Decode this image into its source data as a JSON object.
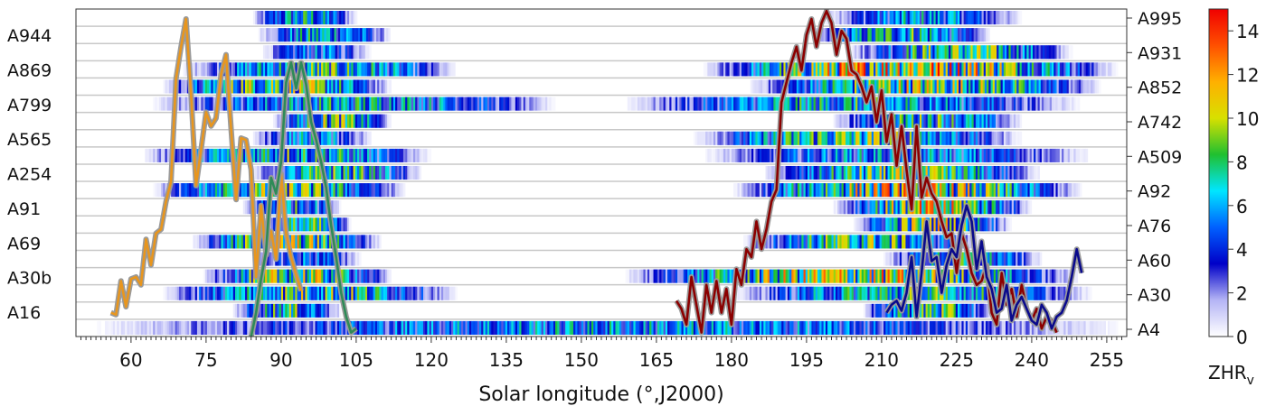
{
  "chart_data": {
    "type": "heatmap",
    "xlabel": "Solar longitude (°,J2000)",
    "xlim": [
      49,
      259
    ],
    "x_ticks": [
      60,
      75,
      90,
      105,
      120,
      135,
      150,
      165,
      180,
      195,
      210,
      225,
      240,
      255
    ],
    "left_row_labels": [
      "A944",
      "A869",
      "A799",
      "A565",
      "A254",
      "A91",
      "A69",
      "A30b",
      "A16"
    ],
    "right_row_labels": [
      "A995",
      "A931",
      "A852",
      "A742",
      "A509",
      "A92",
      "A76",
      "A60",
      "A30",
      "A4"
    ],
    "colorbar": {
      "label": "ZHR",
      "label_subscript": "v",
      "range": [
        0,
        15
      ],
      "ticks": [
        "0",
        "2",
        "4",
        "6",
        "8",
        "10",
        "12",
        "14"
      ],
      "colors": [
        "#ffffff",
        "#b4b4f5",
        "#0000c8",
        "#0060ff",
        "#00e6ff",
        "#20c030",
        "#d8e000",
        "#ffb000",
        "#ff5000",
        "#f00000"
      ]
    },
    "rows": [
      {
        "segments": [
          [
            84,
            105,
            8
          ],
          [
            198,
            238,
            7
          ]
        ]
      },
      {
        "segments": [
          [
            85,
            112,
            8
          ],
          [
            196,
            232,
            9
          ]
        ]
      },
      {
        "segments": [
          [
            86,
            108,
            6
          ],
          [
            203,
            248,
            10
          ]
        ]
      },
      {
        "segments": [
          [
            70,
            125,
            9
          ],
          [
            174,
            257,
            14
          ]
        ]
      },
      {
        "segments": [
          [
            66,
            112,
            11
          ],
          [
            183,
            254,
            11
          ]
        ]
      },
      {
        "segments": [
          [
            64,
            145,
            8
          ],
          [
            158,
            250,
            8
          ]
        ]
      },
      {
        "segments": [
          [
            88,
            112,
            10
          ],
          [
            200,
            238,
            9
          ]
        ]
      },
      {
        "segments": [
          [
            84,
            108,
            7
          ],
          [
            172,
            238,
            10
          ]
        ]
      },
      {
        "segments": [
          [
            62,
            120,
            9
          ],
          [
            174,
            252,
            7
          ]
        ]
      },
      {
        "segments": [
          [
            84,
            118,
            9
          ],
          [
            186,
            242,
            10
          ]
        ]
      },
      {
        "segments": [
          [
            64,
            115,
            10
          ],
          [
            180,
            250,
            12
          ]
        ]
      },
      {
        "segments": [
          [
            82,
            102,
            8
          ],
          [
            200,
            240,
            12
          ]
        ]
      },
      {
        "segments": [
          [
            86,
            104,
            9
          ],
          [
            204,
            236,
            11
          ]
        ]
      },
      {
        "segments": [
          [
            72,
            110,
            11
          ],
          [
            182,
            230,
            10
          ]
        ]
      },
      {
        "segments": [
          [
            84,
            106,
            6
          ],
          [
            210,
            242,
            8
          ]
        ]
      },
      {
        "segments": [
          [
            74,
            112,
            11
          ],
          [
            158,
            250,
            12
          ]
        ]
      },
      {
        "segments": [
          [
            66,
            125,
            10
          ],
          [
            180,
            252,
            9
          ]
        ]
      },
      {
        "segments": [
          [
            80,
            102,
            9
          ],
          [
            206,
            232,
            10
          ]
        ]
      },
      {
        "segments": [
          [
            52,
            258,
            7
          ]
        ]
      }
    ],
    "series": [
      {
        "color": "#e8961e",
        "x": [
          56,
          57,
          58,
          59,
          60,
          61,
          62,
          63,
          64,
          65,
          66,
          67,
          68,
          69,
          70,
          71,
          72,
          73,
          74,
          75,
          76,
          77,
          78,
          79,
          80,
          81,
          82,
          83,
          84,
          85,
          86,
          87,
          88,
          89,
          90,
          91,
          92,
          93,
          94
        ],
        "y": [
          1.2,
          1.1,
          2.8,
          1.5,
          2.9,
          3.0,
          2.6,
          4.9,
          3.6,
          5.2,
          5.4,
          6.8,
          7.8,
          13.0,
          14.6,
          16.0,
          12.2,
          7.6,
          9.4,
          11.3,
          10.6,
          11.0,
          13.2,
          14.2,
          10.5,
          6.9,
          10.0,
          9.9,
          8.4,
          3.0,
          6.6,
          4.1,
          5.3,
          3.9,
          8.2,
          5.2,
          4.0,
          3.1,
          2.3
        ]
      },
      {
        "color": "#2e8b57",
        "x": [
          84,
          85,
          86,
          87,
          88,
          89,
          90,
          91,
          92,
          93,
          94,
          95,
          96,
          97,
          98,
          99,
          100,
          101,
          102,
          103,
          104,
          105
        ],
        "y": [
          0.0,
          1.2,
          2.9,
          4.3,
          8.0,
          7.2,
          8.8,
          12.8,
          13.8,
          12.5,
          13.8,
          12.7,
          10.8,
          9.9,
          8.8,
          7.5,
          5.6,
          4.0,
          2.2,
          1.0,
          0.2,
          0.4
        ]
      },
      {
        "color": "#8b0000",
        "x": [
          169,
          170,
          171,
          172,
          173,
          174,
          175,
          176,
          177,
          178,
          179,
          180,
          181,
          182,
          183,
          184,
          185,
          186,
          187,
          188,
          189,
          190,
          191,
          192,
          193,
          194,
          195,
          196,
          197,
          198,
          199,
          200,
          201,
          202,
          203,
          204,
          205,
          206,
          207,
          208,
          209,
          210,
          211,
          212,
          213,
          214,
          215,
          216,
          217,
          218,
          219,
          220,
          221,
          222,
          223,
          224,
          225,
          226,
          227,
          228,
          229,
          230,
          231,
          232,
          233,
          234,
          235,
          236,
          237,
          238,
          239,
          240,
          241,
          242,
          243,
          244,
          245
        ],
        "y": [
          1.8,
          1.4,
          0.6,
          3.0,
          1.6,
          0.2,
          2.6,
          1.2,
          2.8,
          1.2,
          2.4,
          0.6,
          3.4,
          2.6,
          4.4,
          4.0,
          5.8,
          4.4,
          5.4,
          6.8,
          7.4,
          11.8,
          12.8,
          13.8,
          14.6,
          13.4,
          15.2,
          16.0,
          14.6,
          15.8,
          16.4,
          15.8,
          14.2,
          15.4,
          15.0,
          13.4,
          13.2,
          12.6,
          11.8,
          12.6,
          10.8,
          12.4,
          9.8,
          11.2,
          8.6,
          10.6,
          8.4,
          6.4,
          10.6,
          7.0,
          8.0,
          7.2,
          6.8,
          5.8,
          5.0,
          5.2,
          3.2,
          5.2,
          4.4,
          3.2,
          2.6,
          2.8,
          3.6,
          1.2,
          0.6,
          3.2,
          1.6,
          2.4,
          1.0,
          2.6,
          1.4,
          0.8,
          1.4,
          0.4,
          1.0,
          0.8,
          0.2
        ]
      },
      {
        "color": "#0a0a8c",
        "x": [
          211,
          212,
          213,
          214,
          215,
          216,
          217,
          218,
          219,
          220,
          221,
          222,
          223,
          224,
          225,
          226,
          227,
          228,
          229,
          230,
          231,
          232,
          233,
          234,
          235,
          236,
          237,
          238,
          239,
          240,
          241,
          242,
          243,
          244,
          245,
          246,
          247,
          248,
          249,
          250
        ],
        "y": [
          1.2,
          1.6,
          1.8,
          1.3,
          2.2,
          4.0,
          1.0,
          3.2,
          5.8,
          3.8,
          4.0,
          2.2,
          3.6,
          4.4,
          4.0,
          5.6,
          6.6,
          5.8,
          3.4,
          4.8,
          3.0,
          2.4,
          1.2,
          1.4,
          2.6,
          0.8,
          1.6,
          2.0,
          1.4,
          0.8,
          0.6,
          1.6,
          1.2,
          0.4,
          1.0,
          1.2,
          1.8,
          3.0,
          4.4,
          3.2
        ]
      }
    ]
  }
}
